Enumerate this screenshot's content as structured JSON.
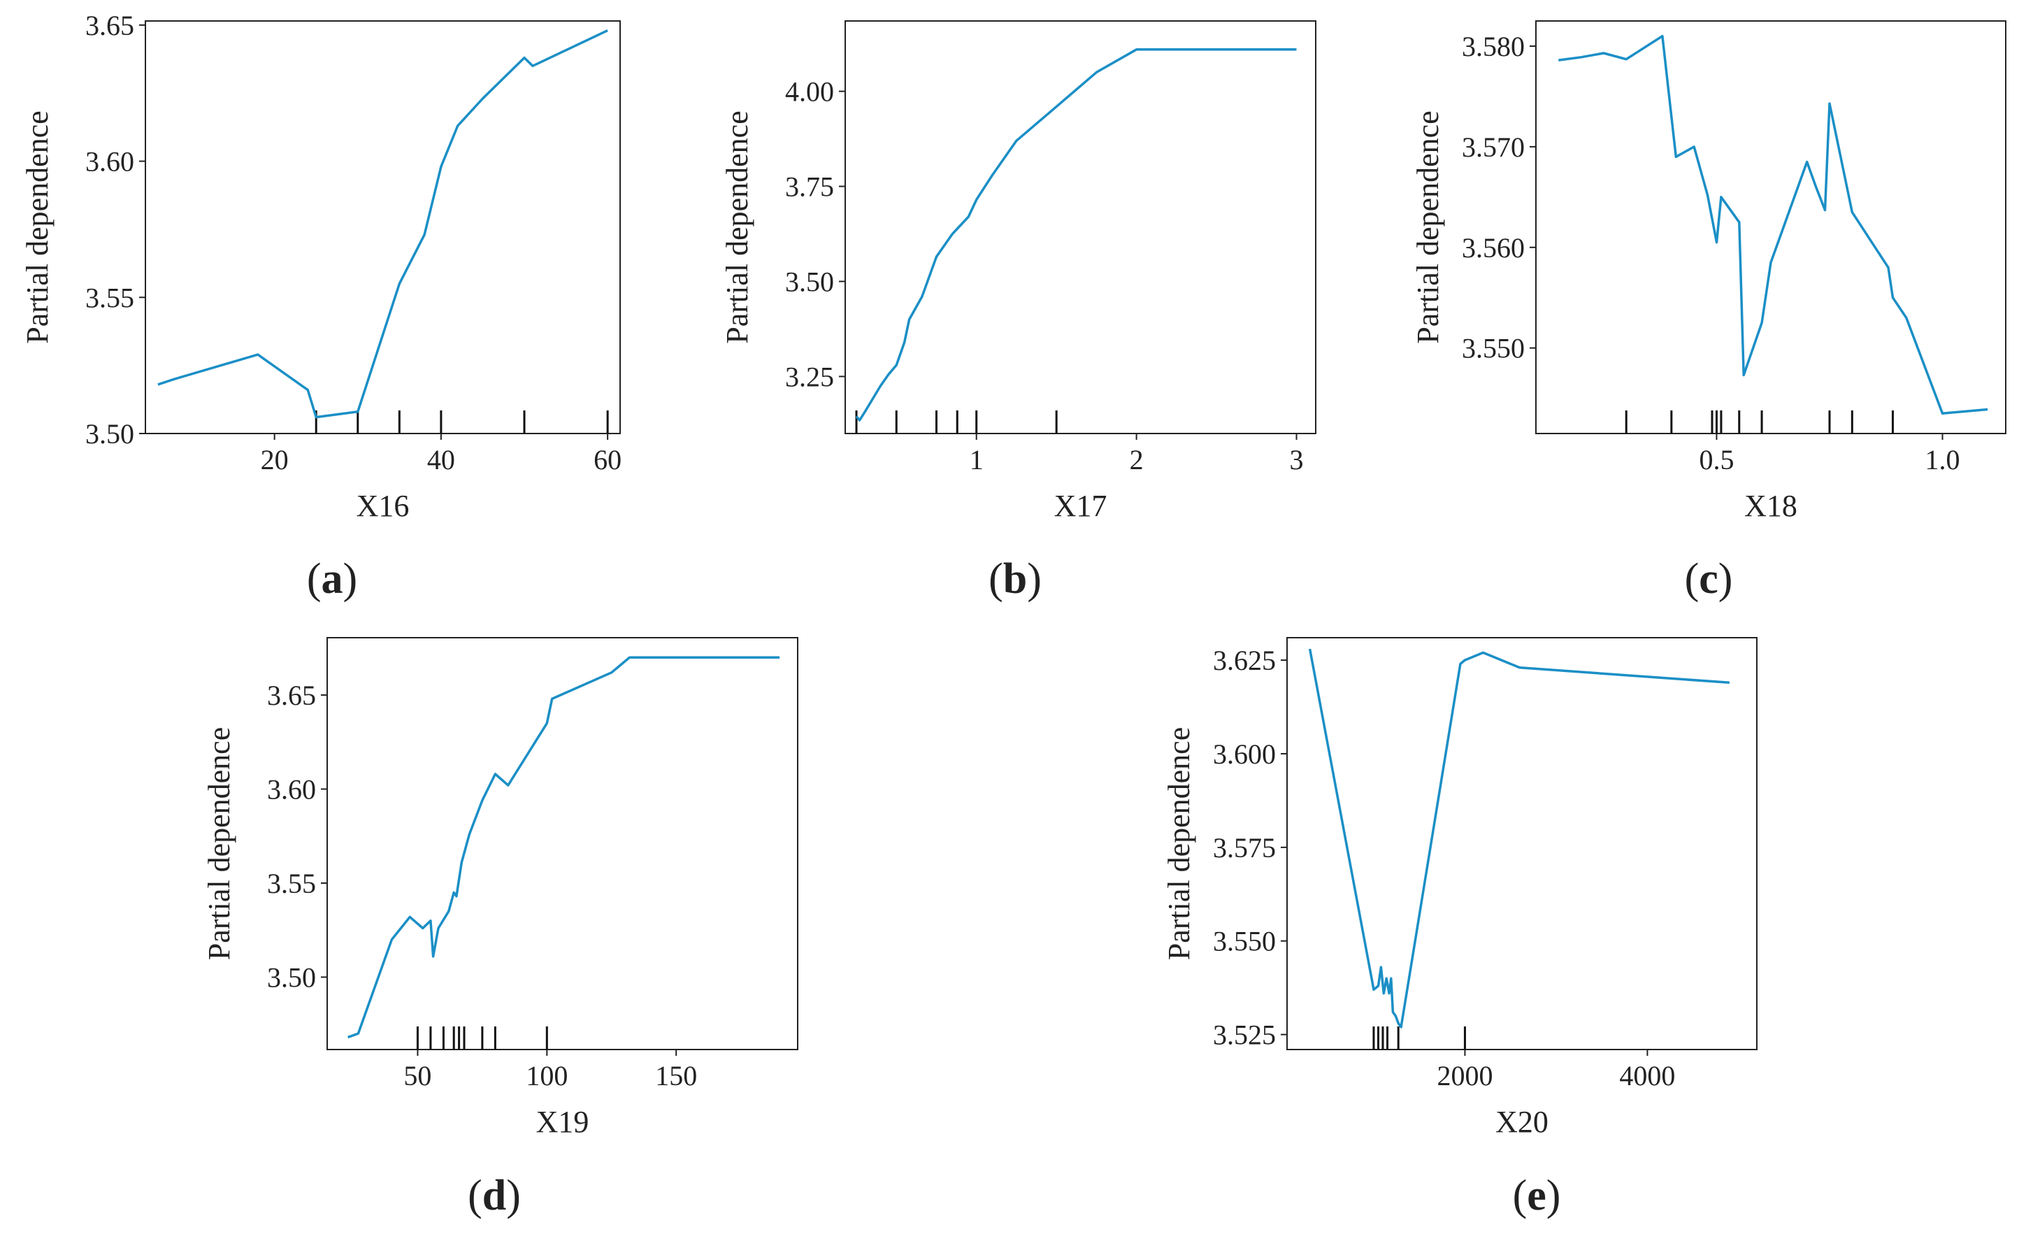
{
  "figure": {
    "line_color": "#1b8fc6",
    "axis_color": "#222222"
  },
  "chart_data": [
    {
      "panel_label": "(a)",
      "panel_letter": "a",
      "type": "line",
      "title": "",
      "xlabel": "X16",
      "ylabel": "Partial dependence",
      "xlim": [
        4.5,
        61.5
      ],
      "ylim": [
        3.5,
        3.6515
      ],
      "xticks": [
        20,
        40,
        60
      ],
      "yticks": [
        3.5,
        3.55,
        3.6,
        3.65
      ],
      "xtick_labels": [
        "20",
        "40",
        "60"
      ],
      "ytick_labels": [
        "3.50",
        "3.55",
        "3.60",
        "3.65"
      ],
      "x": [
        6,
        8,
        18,
        24,
        25,
        30,
        35,
        38,
        40,
        42,
        45,
        50,
        51,
        60
      ],
      "y": [
        3.518,
        3.52,
        3.529,
        3.516,
        3.506,
        3.508,
        3.555,
        3.573,
        3.598,
        3.613,
        3.623,
        3.638,
        3.635,
        3.648
      ],
      "rug": [
        25,
        30,
        35,
        40,
        50,
        60
      ]
    },
    {
      "panel_label": "(b)",
      "panel_letter": "b",
      "type": "line",
      "title": "",
      "xlabel": "X17",
      "ylabel": "Partial dependence",
      "xlim": [
        0.18,
        3.12
      ],
      "ylim": [
        3.1,
        4.185
      ],
      "xticks": [
        1,
        2,
        3
      ],
      "yticks": [
        3.25,
        3.5,
        3.75,
        4.0
      ],
      "xtick_labels": [
        "1",
        "2",
        "3"
      ],
      "ytick_labels": [
        "3.25",
        "3.50",
        "3.75",
        "4.00"
      ],
      "x": [
        0.25,
        0.27,
        0.3,
        0.35,
        0.4,
        0.45,
        0.5,
        0.55,
        0.58,
        0.62,
        0.66,
        0.75,
        0.85,
        0.95,
        1.0,
        1.1,
        1.25,
        1.5,
        1.75,
        2.0,
        3.0
      ],
      "y": [
        3.145,
        3.135,
        3.155,
        3.19,
        3.225,
        3.255,
        3.28,
        3.34,
        3.4,
        3.43,
        3.46,
        3.565,
        3.625,
        3.67,
        3.715,
        3.78,
        3.87,
        3.96,
        4.05,
        4.11,
        4.11
      ],
      "rug": [
        0.25,
        0.5,
        0.75,
        0.88,
        1.0,
        1.5
      ]
    },
    {
      "panel_label": "(c)",
      "panel_letter": "c",
      "type": "line",
      "title": "",
      "xlabel": "X18",
      "ylabel": "Partial dependence",
      "xlim": [
        0.1,
        1.14
      ],
      "ylim": [
        3.5415,
        3.5825
      ],
      "xticks": [
        0.5,
        1.0
      ],
      "yticks": [
        3.55,
        3.56,
        3.57,
        3.58
      ],
      "xtick_labels": [
        "0.5",
        "1.0"
      ],
      "ytick_labels": [
        "3.550",
        "3.560",
        "3.570",
        "3.580"
      ],
      "x": [
        0.15,
        0.2,
        0.25,
        0.3,
        0.38,
        0.41,
        0.45,
        0.48,
        0.5,
        0.51,
        0.55,
        0.56,
        0.6,
        0.62,
        0.7,
        0.72,
        0.74,
        0.75,
        0.8,
        0.88,
        0.89,
        0.92,
        1.0,
        1.1
      ],
      "y": [
        3.5786,
        3.5789,
        3.5793,
        3.5787,
        3.581,
        3.569,
        3.57,
        3.5652,
        3.5605,
        3.565,
        3.5625,
        3.5473,
        3.5525,
        3.5585,
        3.5685,
        3.566,
        3.5637,
        3.5743,
        3.5635,
        3.558,
        3.555,
        3.553,
        3.5435,
        3.5439
      ],
      "rug": [
        0.3,
        0.4,
        0.49,
        0.5,
        0.51,
        0.55,
        0.6,
        0.75,
        0.8,
        0.89
      ]
    },
    {
      "panel_label": "(d)",
      "panel_letter": "d",
      "type": "line",
      "title": "",
      "xlabel": "X19",
      "ylabel": "Partial dependence",
      "xlim": [
        15,
        197
      ],
      "ylim": [
        3.4615,
        3.6805
      ],
      "xticks": [
        50,
        100,
        150
      ],
      "yticks": [
        3.5,
        3.55,
        3.6,
        3.65
      ],
      "xtick_labels": [
        "50",
        "100",
        "150"
      ],
      "ytick_labels": [
        "3.50",
        "3.55",
        "3.60",
        "3.65"
      ],
      "x": [
        23,
        27,
        40,
        47,
        52,
        55,
        56,
        58,
        62,
        64,
        65,
        67,
        70,
        75,
        80,
        85,
        100,
        102,
        125,
        132,
        190
      ],
      "y": [
        3.468,
        3.47,
        3.52,
        3.532,
        3.526,
        3.53,
        3.511,
        3.526,
        3.535,
        3.545,
        3.543,
        3.561,
        3.576,
        3.594,
        3.608,
        3.602,
        3.635,
        3.648,
        3.662,
        3.67,
        3.67
      ],
      "rug": [
        50,
        55,
        60,
        64,
        66,
        68,
        75,
        80,
        100
      ]
    },
    {
      "panel_label": "(e)",
      "panel_letter": "e",
      "type": "line",
      "title": "",
      "xlabel": "X20",
      "ylabel": "Partial dependence",
      "xlim": [
        50,
        5200
      ],
      "ylim": [
        3.521,
        3.631
      ],
      "xticks": [
        2000,
        4000
      ],
      "yticks": [
        3.525,
        3.55,
        3.575,
        3.6,
        3.625
      ],
      "xtick_labels": [
        "2000",
        "4000"
      ],
      "ytick_labels": [
        "3.525",
        "3.550",
        "3.575",
        "3.600",
        "3.625"
      ],
      "x": [
        300,
        1000,
        1050,
        1080,
        1110,
        1140,
        1170,
        1190,
        1210,
        1240,
        1270,
        1300,
        1950,
        2000,
        2200,
        2300,
        2600,
        4900
      ],
      "y": [
        3.628,
        3.537,
        3.538,
        3.543,
        3.536,
        3.54,
        3.536,
        3.54,
        3.531,
        3.53,
        3.528,
        3.527,
        3.624,
        3.625,
        3.627,
        3.626,
        3.623,
        3.619
      ],
      "rug": [
        1000,
        1050,
        1100,
        1150,
        1270,
        2000
      ]
    }
  ]
}
